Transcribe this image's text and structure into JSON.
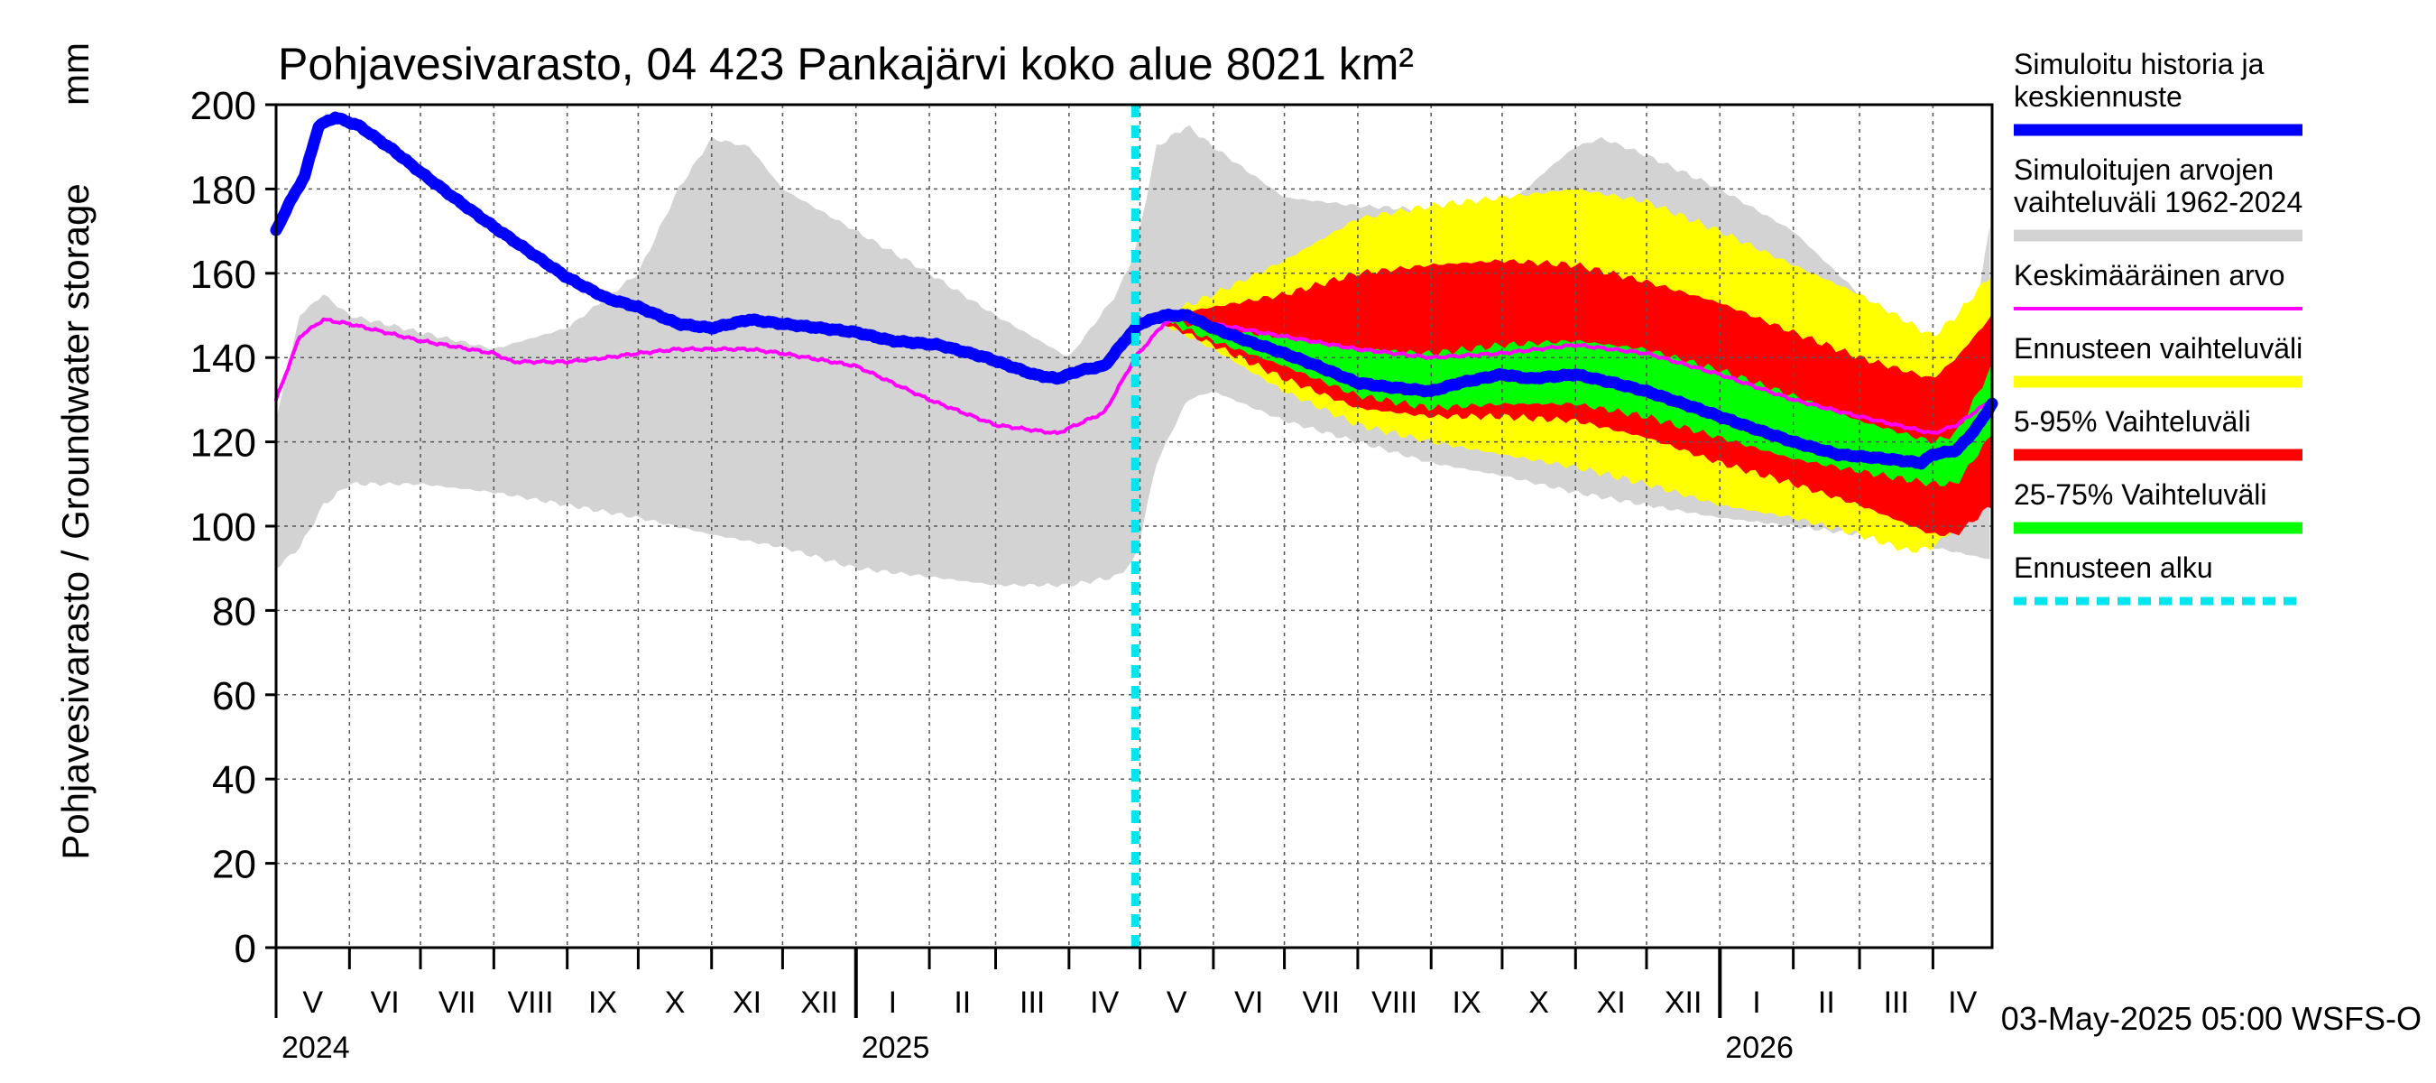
{
  "chart_data": {
    "type": "area",
    "title": "Pohjavesivarasto, 04 423 Pankajärvi koko alue 8021 km²",
    "ylabel": "Pohjavesivarasto / Groundwater storage",
    "yunit": "mm",
    "ylim": [
      0,
      200
    ],
    "yticks": [
      0,
      20,
      40,
      60,
      80,
      100,
      120,
      140,
      160,
      180,
      200
    ],
    "grid": true,
    "x_range_days": [
      0,
      725
    ],
    "forecast_start_day": 363,
    "months": [
      {
        "label": "V",
        "start": 0
      },
      {
        "label": "VI",
        "start": 31
      },
      {
        "label": "VII",
        "start": 61
      },
      {
        "label": "VIII",
        "start": 92
      },
      {
        "label": "IX",
        "start": 123
      },
      {
        "label": "X",
        "start": 153
      },
      {
        "label": "XI",
        "start": 184
      },
      {
        "label": "XII",
        "start": 214
      },
      {
        "label": "I",
        "start": 245
      },
      {
        "label": "II",
        "start": 276
      },
      {
        "label": "III",
        "start": 304
      },
      {
        "label": "IV",
        "start": 335
      },
      {
        "label": "V",
        "start": 365
      },
      {
        "label": "VI",
        "start": 396
      },
      {
        "label": "VII",
        "start": 426
      },
      {
        "label": "VIII",
        "start": 457
      },
      {
        "label": "IX",
        "start": 488
      },
      {
        "label": "X",
        "start": 518
      },
      {
        "label": "XI",
        "start": 549
      },
      {
        "label": "XII",
        "start": 579
      },
      {
        "label": "I",
        "start": 610
      },
      {
        "label": "II",
        "start": 641
      },
      {
        "label": "III",
        "start": 669
      },
      {
        "label": "IV",
        "start": 700
      }
    ],
    "month_end": 730,
    "years": [
      {
        "label": "2024",
        "day": 0
      },
      {
        "label": "2025",
        "day": 245
      },
      {
        "label": "2026",
        "day": 610
      }
    ],
    "series": [
      {
        "name": "hist_range",
        "legend": "Simuloitujen arvojen vaihteluväli 1962-2024",
        "color": "#d3d3d3",
        "upper": [
          [
            0,
            125
          ],
          [
            10,
            150
          ],
          [
            20,
            155
          ],
          [
            31,
            150
          ],
          [
            61,
            146
          ],
          [
            92,
            142
          ],
          [
            123,
            147
          ],
          [
            153,
            160
          ],
          [
            170,
            180
          ],
          [
            184,
            192
          ],
          [
            200,
            190
          ],
          [
            214,
            180
          ],
          [
            245,
            170
          ],
          [
            276,
            160
          ],
          [
            304,
            150
          ],
          [
            335,
            140
          ],
          [
            355,
            155
          ],
          [
            363,
            165
          ],
          [
            372,
            190
          ],
          [
            385,
            195
          ],
          [
            396,
            190
          ],
          [
            426,
            178
          ],
          [
            457,
            176
          ],
          [
            488,
            175
          ],
          [
            518,
            175
          ],
          [
            540,
            186
          ],
          [
            549,
            190
          ],
          [
            560,
            192
          ],
          [
            579,
            188
          ],
          [
            610,
            180
          ],
          [
            641,
            170
          ],
          [
            669,
            155
          ],
          [
            700,
            135
          ],
          [
            710,
            130
          ],
          [
            718,
            150
          ],
          [
            725,
            175
          ]
        ],
        "lower": [
          [
            0,
            90
          ],
          [
            10,
            95
          ],
          [
            20,
            105
          ],
          [
            31,
            110
          ],
          [
            61,
            110
          ],
          [
            92,
            108
          ],
          [
            123,
            105
          ],
          [
            153,
            102
          ],
          [
            184,
            98
          ],
          [
            214,
            95
          ],
          [
            245,
            90
          ],
          [
            276,
            88
          ],
          [
            304,
            86
          ],
          [
            335,
            86
          ],
          [
            355,
            88
          ],
          [
            363,
            92
          ],
          [
            372,
            115
          ],
          [
            385,
            130
          ],
          [
            396,
            132
          ],
          [
            426,
            125
          ],
          [
            457,
            120
          ],
          [
            488,
            115
          ],
          [
            518,
            112
          ],
          [
            549,
            108
          ],
          [
            579,
            105
          ],
          [
            610,
            102
          ],
          [
            641,
            100
          ],
          [
            669,
            98
          ],
          [
            700,
            95
          ],
          [
            725,
            92
          ]
        ]
      },
      {
        "name": "forecast_range",
        "legend": "Ennusteen vaihteluväli",
        "color": "#ffff00",
        "upper": [
          [
            375,
            150
          ],
          [
            396,
            155
          ],
          [
            426,
            163
          ],
          [
            457,
            173
          ],
          [
            488,
            176
          ],
          [
            518,
            178
          ],
          [
            549,
            180
          ],
          [
            579,
            177
          ],
          [
            610,
            170
          ],
          [
            641,
            162
          ],
          [
            669,
            155
          ],
          [
            700,
            145
          ],
          [
            710,
            150
          ],
          [
            725,
            160
          ]
        ],
        "lower": [
          [
            375,
            148
          ],
          [
            396,
            142
          ],
          [
            426,
            132
          ],
          [
            457,
            124
          ],
          [
            488,
            120
          ],
          [
            518,
            117
          ],
          [
            549,
            114
          ],
          [
            579,
            110
          ],
          [
            610,
            105
          ],
          [
            641,
            102
          ],
          [
            669,
            98
          ],
          [
            690,
            94
          ],
          [
            700,
            95
          ],
          [
            710,
            100
          ],
          [
            725,
            108
          ]
        ]
      },
      {
        "name": "p5_95",
        "legend": "5-95% Vaihteluväli",
        "color": "#ff0000",
        "upper": [
          [
            375,
            150
          ],
          [
            396,
            152
          ],
          [
            426,
            155
          ],
          [
            457,
            160
          ],
          [
            488,
            162
          ],
          [
            518,
            163
          ],
          [
            549,
            162
          ],
          [
            579,
            158
          ],
          [
            610,
            153
          ],
          [
            641,
            146
          ],
          [
            669,
            140
          ],
          [
            700,
            135
          ],
          [
            710,
            140
          ],
          [
            725,
            150
          ]
        ],
        "lower": [
          [
            375,
            148
          ],
          [
            396,
            143
          ],
          [
            426,
            135
          ],
          [
            457,
            128
          ],
          [
            488,
            126
          ],
          [
            518,
            126
          ],
          [
            549,
            125
          ],
          [
            579,
            121
          ],
          [
            610,
            115
          ],
          [
            641,
            110
          ],
          [
            669,
            105
          ],
          [
            700,
            98
          ],
          [
            710,
            98
          ],
          [
            725,
            105
          ]
        ]
      },
      {
        "name": "p25_75",
        "legend": "25-75% Vaihteluväli",
        "color": "#00ff00",
        "upper": [
          [
            375,
            149
          ],
          [
            396,
            147
          ],
          [
            426,
            145
          ],
          [
            457,
            142
          ],
          [
            488,
            141
          ],
          [
            518,
            143
          ],
          [
            549,
            144
          ],
          [
            579,
            142
          ],
          [
            610,
            137
          ],
          [
            641,
            131
          ],
          [
            669,
            125
          ],
          [
            700,
            120
          ],
          [
            710,
            122
          ],
          [
            725,
            138
          ]
        ],
        "lower": [
          [
            375,
            149
          ],
          [
            396,
            144
          ],
          [
            426,
            138
          ],
          [
            457,
            131
          ],
          [
            488,
            128
          ],
          [
            518,
            129
          ],
          [
            549,
            129
          ],
          [
            579,
            126
          ],
          [
            610,
            121
          ],
          [
            641,
            116
          ],
          [
            669,
            113
          ],
          [
            700,
            110
          ],
          [
            710,
            110
          ],
          [
            725,
            122
          ]
        ]
      },
      {
        "name": "mean",
        "legend": "Keskimääräinen arvo",
        "color": "#ff00ff",
        "points": [
          [
            0,
            130
          ],
          [
            10,
            145
          ],
          [
            20,
            149
          ],
          [
            31,
            148
          ],
          [
            61,
            144
          ],
          [
            92,
            141
          ],
          [
            100,
            139
          ],
          [
            123,
            139
          ],
          [
            140,
            140
          ],
          [
            153,
            141
          ],
          [
            170,
            142
          ],
          [
            184,
            142
          ],
          [
            200,
            142
          ],
          [
            214,
            141
          ],
          [
            245,
            138
          ],
          [
            276,
            130
          ],
          [
            304,
            124
          ],
          [
            330,
            122
          ],
          [
            350,
            127
          ],
          [
            363,
            140
          ],
          [
            375,
            148
          ],
          [
            385,
            150
          ],
          [
            396,
            148
          ],
          [
            426,
            145
          ],
          [
            457,
            142
          ],
          [
            488,
            140
          ],
          [
            518,
            141
          ],
          [
            549,
            143
          ],
          [
            579,
            141
          ],
          [
            610,
            136
          ],
          [
            641,
            130
          ],
          [
            669,
            126
          ],
          [
            700,
            122
          ],
          [
            710,
            124
          ],
          [
            725,
            130
          ]
        ]
      },
      {
        "name": "sim_history",
        "legend": "Simuloitu historia ja keskiennuste",
        "color": "#0000ff",
        "points": [
          [
            0,
            170
          ],
          [
            5,
            176
          ],
          [
            12,
            183
          ],
          [
            18,
            195
          ],
          [
            25,
            197
          ],
          [
            35,
            195
          ],
          [
            50,
            189
          ],
          [
            61,
            184
          ],
          [
            75,
            178
          ],
          [
            92,
            171
          ],
          [
            110,
            164
          ],
          [
            123,
            159
          ],
          [
            140,
            154
          ],
          [
            153,
            152
          ],
          [
            170,
            148
          ],
          [
            184,
            147
          ],
          [
            200,
            149
          ],
          [
            214,
            148
          ],
          [
            230,
            147
          ],
          [
            245,
            146
          ],
          [
            260,
            144
          ],
          [
            280,
            143
          ],
          [
            300,
            140
          ],
          [
            320,
            136
          ],
          [
            330,
            135
          ],
          [
            340,
            137
          ],
          [
            350,
            138
          ],
          [
            360,
            145
          ],
          [
            365,
            148
          ],
          [
            375,
            150
          ],
          [
            385,
            150
          ],
          [
            396,
            147
          ],
          [
            410,
            144
          ],
          [
            426,
            141
          ],
          [
            440,
            138
          ],
          [
            457,
            134
          ],
          [
            470,
            133
          ],
          [
            488,
            132
          ],
          [
            500,
            134
          ],
          [
            518,
            136
          ],
          [
            530,
            135
          ],
          [
            549,
            136
          ],
          [
            565,
            134
          ],
          [
            579,
            132
          ],
          [
            600,
            128
          ],
          [
            620,
            124
          ],
          [
            641,
            120
          ],
          [
            660,
            117
          ],
          [
            680,
            116
          ],
          [
            695,
            115
          ],
          [
            700,
            117
          ],
          [
            710,
            118
          ],
          [
            718,
            123
          ],
          [
            725,
            129
          ]
        ]
      }
    ]
  },
  "legend": [
    {
      "label": "Simuloitu historia ja keskiennuste",
      "color": "#0000ff",
      "style": "solid"
    },
    {
      "label": "Simuloitujen arvojen vaihteluväli 1962-2024",
      "color": "#d3d3d3",
      "style": "solid"
    },
    {
      "label": "Keskimääräinen arvo",
      "color": "#ff00ff",
      "style": "thin"
    },
    {
      "label": "Ennusteen vaihteluväli",
      "color": "#ffff00",
      "style": "solid"
    },
    {
      "label": "5-95% Vaihteluväli",
      "color": "#ff0000",
      "style": "solid"
    },
    {
      "label": "25-75% Vaihteluväli",
      "color": "#00ff00",
      "style": "solid"
    },
    {
      "label": "Ennusteen alku",
      "color": "#00e5ee",
      "style": "dashed"
    }
  ],
  "footer": "03-May-2025 05:00 WSFS-O"
}
